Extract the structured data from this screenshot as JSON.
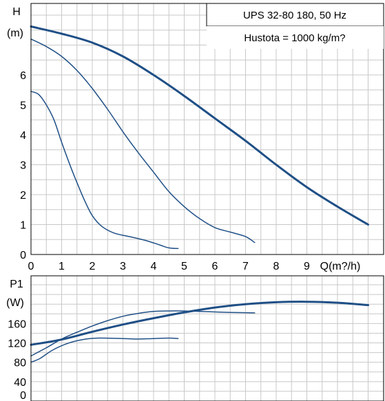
{
  "colors": {
    "curve": "#1f4f86",
    "grid": "#c8c8c8",
    "frame": "#000000",
    "background": "#ffffff"
  },
  "chart_data": [
    {
      "type": "line",
      "id": "head",
      "title": "UPS 32-80 180, 50 Hz",
      "subtitle": "Hustota = 1000 kg/m?",
      "ylabel_top": "H",
      "ylabel_unit": "(m)",
      "xlabel": "Q(m?/h)",
      "x_ticks": [
        "0",
        "1",
        "2",
        "3",
        "4",
        "5",
        "6",
        "7",
        "8",
        "9"
      ],
      "y_ticks": [
        "0",
        "1",
        "2",
        "3",
        "4",
        "5",
        "6"
      ],
      "xlim": [
        0,
        11.3
      ],
      "ylim": [
        0,
        8.0
      ],
      "grid": true,
      "series": [
        {
          "values": [
            [
              0,
              7.62
            ],
            [
              1,
              7.38
            ],
            [
              2,
              7.08
            ],
            [
              3,
              6.62
            ],
            [
              4,
              6.0
            ],
            [
              5,
              5.3
            ],
            [
              6,
              4.55
            ],
            [
              7,
              3.8
            ],
            [
              8,
              3.0
            ],
            [
              9,
              2.25
            ],
            [
              10,
              1.6
            ],
            [
              11.0,
              1.0
            ]
          ],
          "stroke": 3
        },
        {
          "values": [
            [
              0,
              7.2
            ],
            [
              0.5,
              6.95
            ],
            [
              1,
              6.62
            ],
            [
              1.5,
              6.15
            ],
            [
              2,
              5.55
            ],
            [
              2.5,
              4.85
            ],
            [
              3,
              4.1
            ],
            [
              3.5,
              3.4
            ],
            [
              4,
              2.75
            ],
            [
              4.5,
              2.1
            ],
            [
              5,
              1.6
            ],
            [
              5.5,
              1.2
            ],
            [
              6,
              0.9
            ],
            [
              6.5,
              0.75
            ],
            [
              7,
              0.6
            ],
            [
              7.3,
              0.4
            ]
          ],
          "stroke": 1.5
        },
        {
          "values": [
            [
              0,
              5.45
            ],
            [
              0.25,
              5.35
            ],
            [
              0.5,
              5.0
            ],
            [
              0.75,
              4.5
            ],
            [
              1,
              3.75
            ],
            [
              1.25,
              3.05
            ],
            [
              1.5,
              2.4
            ],
            [
              1.75,
              1.8
            ],
            [
              2,
              1.3
            ],
            [
              2.3,
              0.95
            ],
            [
              2.7,
              0.72
            ],
            [
              3.2,
              0.6
            ],
            [
              3.7,
              0.48
            ],
            [
              4.2,
              0.32
            ],
            [
              4.5,
              0.22
            ],
            [
              4.8,
              0.2
            ]
          ],
          "stroke": 1.5
        }
      ]
    },
    {
      "type": "line",
      "id": "power",
      "ylabel_top": "P1",
      "ylabel_unit": "(W)",
      "y_ticks": [
        "0",
        "40",
        "80",
        "120",
        "160"
      ],
      "xlim": [
        0,
        11.3
      ],
      "ylim": [
        0,
        265
      ],
      "grid": true,
      "series": [
        {
          "values": [
            [
              0,
              116
            ],
            [
              1,
              127
            ],
            [
              2,
              143
            ],
            [
              3,
              158
            ],
            [
              4,
              171
            ],
            [
              5,
              183
            ],
            [
              6,
              193
            ],
            [
              7,
              200
            ],
            [
              8,
              204
            ],
            [
              9,
              205
            ],
            [
              10,
              203
            ],
            [
              11,
              198
            ]
          ],
          "stroke": 3
        },
        {
          "values": [
            [
              0,
              93
            ],
            [
              0.5,
              110
            ],
            [
              1,
              128
            ],
            [
              1.5,
              142
            ],
            [
              2,
              155
            ],
            [
              2.5,
              166
            ],
            [
              3,
              175
            ],
            [
              3.5,
              181
            ],
            [
              4,
              185
            ],
            [
              4.5,
              186
            ],
            [
              5,
              186
            ],
            [
              5.5,
              185
            ],
            [
              6,
              184
            ],
            [
              6.5,
              183
            ],
            [
              7.3,
              182
            ]
          ],
          "stroke": 1.5
        },
        {
          "values": [
            [
              0,
              80
            ],
            [
              0.3,
              88
            ],
            [
              0.7,
              105
            ],
            [
              1.2,
              119
            ],
            [
              1.7,
              127
            ],
            [
              2.2,
              130
            ],
            [
              3,
              129
            ],
            [
              3.5,
              128
            ],
            [
              4,
              129
            ],
            [
              4.5,
              130
            ],
            [
              4.8,
              129
            ]
          ],
          "stroke": 1.5
        }
      ]
    }
  ]
}
